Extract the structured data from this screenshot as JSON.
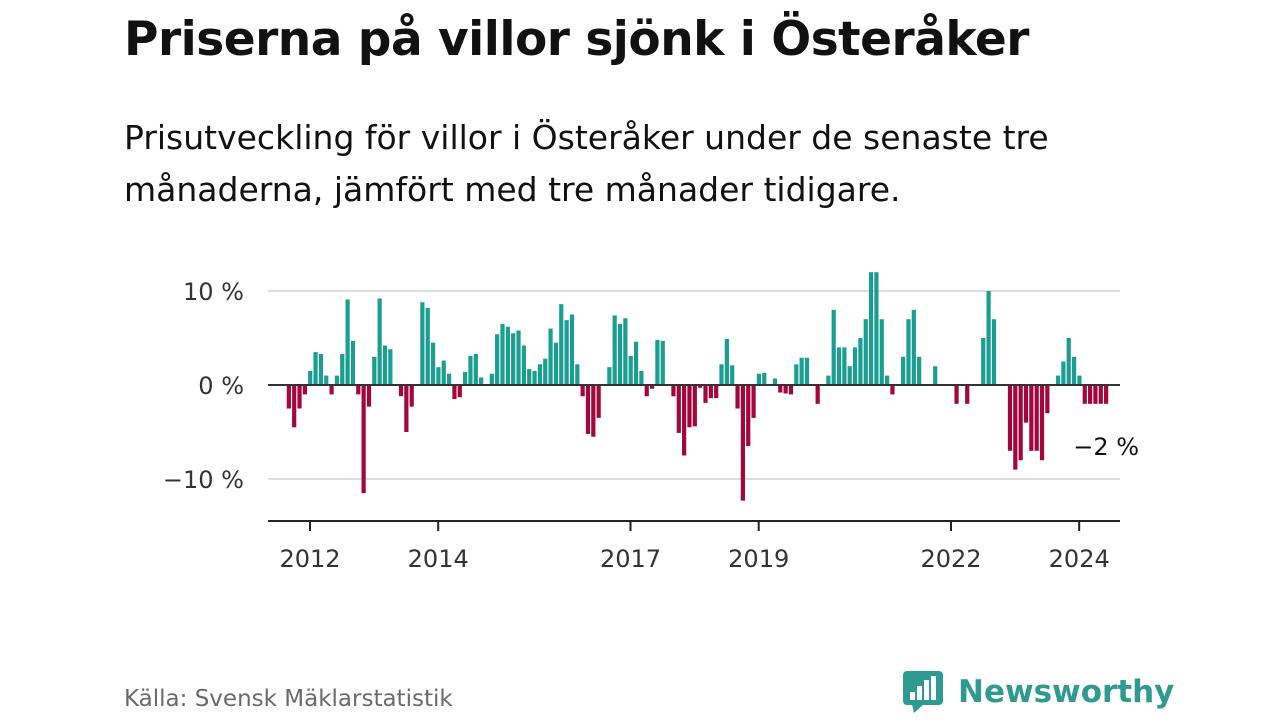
{
  "title": "Priserna på villor sjönk i Österåker",
  "subtitle": "Prisutveckling för villor i Österåker under de senaste tre månaderna, jämfört med tre månader tidigare.",
  "source": "Källa: Svensk Mäklarstatistik",
  "brand": {
    "name": "Newsworthy",
    "icon": "newsworthy-logo-icon"
  },
  "colors": {
    "positive": "#1a9e92",
    "negative": "#a3063d",
    "zero_line": "#333333",
    "grid": "#dddddd",
    "axis": "#222222",
    "text": "#111111",
    "muted": "#6a6a6a",
    "brand": "#2f9a8f"
  },
  "chart_data": {
    "type": "bar",
    "title": "Priserna på villor sjönk i Österåker",
    "xlabel": "",
    "ylabel": "",
    "unit": "%",
    "ylim": [
      -14,
      11
    ],
    "y_ticks": [
      {
        "value": 10,
        "label": "10 %"
      },
      {
        "value": 0,
        "label": "0 %"
      },
      {
        "value": -10,
        "label": "−10 %"
      }
    ],
    "x_start": 2011.67,
    "x_step_months": 1,
    "x_ticks": [
      {
        "value": 2012,
        "label": "2012"
      },
      {
        "value": 2014,
        "label": "2014"
      },
      {
        "value": 2017,
        "label": "2017"
      },
      {
        "value": 2019,
        "label": "2019"
      },
      {
        "value": 2022,
        "label": "2022"
      },
      {
        "value": 2024,
        "label": "2024"
      }
    ],
    "values": [
      -2.5,
      -4.5,
      -2.5,
      -1,
      1.5,
      3.5,
      3.3,
      1,
      -1,
      1,
      3.3,
      9.1,
      4.7,
      -1,
      -11.5,
      -2.3,
      3,
      9.2,
      4.2,
      3.8,
      0,
      -1.2,
      -5,
      -2.3,
      0,
      8.8,
      8.2,
      4.5,
      1.9,
      2.6,
      1.2,
      -1.5,
      -1.3,
      1.4,
      3.1,
      3.3,
      0.8,
      0,
      1.2,
      5.4,
      6.5,
      6.2,
      5.5,
      5.8,
      4.2,
      1.7,
      1.5,
      2.2,
      2.8,
      6,
      4.5,
      8.6,
      6.9,
      7.5,
      2.2,
      -1.2,
      -5.2,
      -5.5,
      -3.5,
      0,
      1.9,
      7.4,
      6.5,
      7.1,
      3.1,
      4.6,
      1.5,
      -1.2,
      -0.4,
      4.8,
      4.7,
      0,
      -1.2,
      -5.1,
      -7.5,
      -4.5,
      -4.4,
      -0.3,
      -1.9,
      -1.4,
      -1.4,
      2.2,
      4.9,
      2.1,
      -2.5,
      -12.3,
      -6.5,
      -3.5,
      1.2,
      1.3,
      0,
      0.7,
      -0.8,
      -0.9,
      -1,
      2.2,
      2.9,
      2.9,
      0,
      -2,
      0,
      1,
      8,
      4,
      4,
      2,
      4,
      5,
      7,
      12,
      12,
      7,
      1,
      -1,
      0,
      3,
      7,
      8,
      3,
      0,
      0,
      2,
      0,
      0,
      0,
      -2,
      0,
      -2,
      0,
      0,
      5,
      10,
      7,
      0,
      0,
      -7,
      -9,
      -8,
      -4,
      -7,
      -7,
      -8,
      -3,
      0,
      1,
      2.5,
      5,
      3,
      1,
      -2,
      -2,
      -2,
      -2,
      -2
    ],
    "annotations": [
      {
        "text": "−2 %",
        "at": "last-bar",
        "value": -2
      }
    ]
  }
}
